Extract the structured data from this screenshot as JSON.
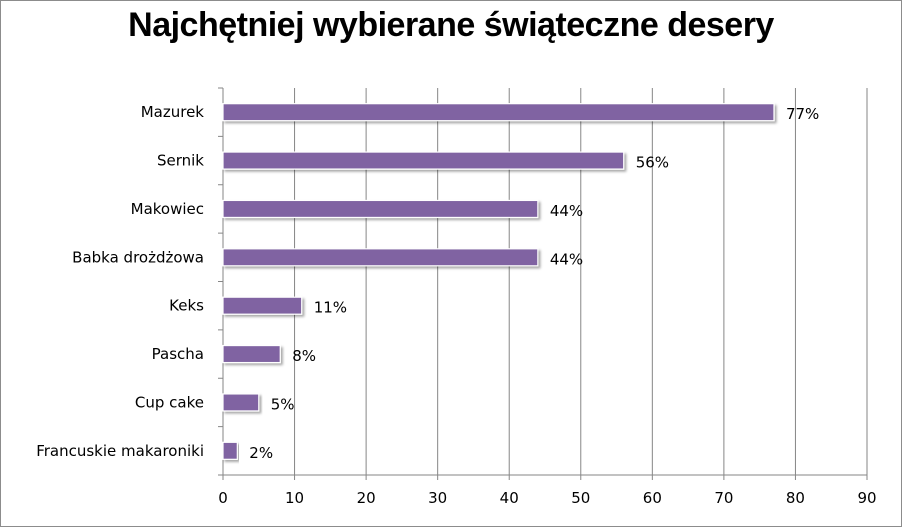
{
  "chart_data": {
    "type": "bar",
    "orientation": "horizontal",
    "title": "Najchętniej wybierane świąteczne desery",
    "categories": [
      "Mazurek",
      "Sernik",
      "Makowiec",
      "Babka drożdżowa",
      "Keks",
      "Pascha",
      "Cup cake",
      "Francuskie makaroniki"
    ],
    "values": [
      77,
      56,
      44,
      44,
      11,
      8,
      5,
      2
    ],
    "data_labels": [
      "77%",
      "56%",
      "44%",
      "44%",
      "11%",
      "8%",
      "5%",
      "2%"
    ],
    "xlim": [
      0,
      90
    ],
    "xticks": [
      "0",
      "10",
      "20",
      "30",
      "40",
      "50",
      "60",
      "70",
      "80",
      "90"
    ],
    "grid": true,
    "legend": "none",
    "bar_color": "#8064a2"
  }
}
